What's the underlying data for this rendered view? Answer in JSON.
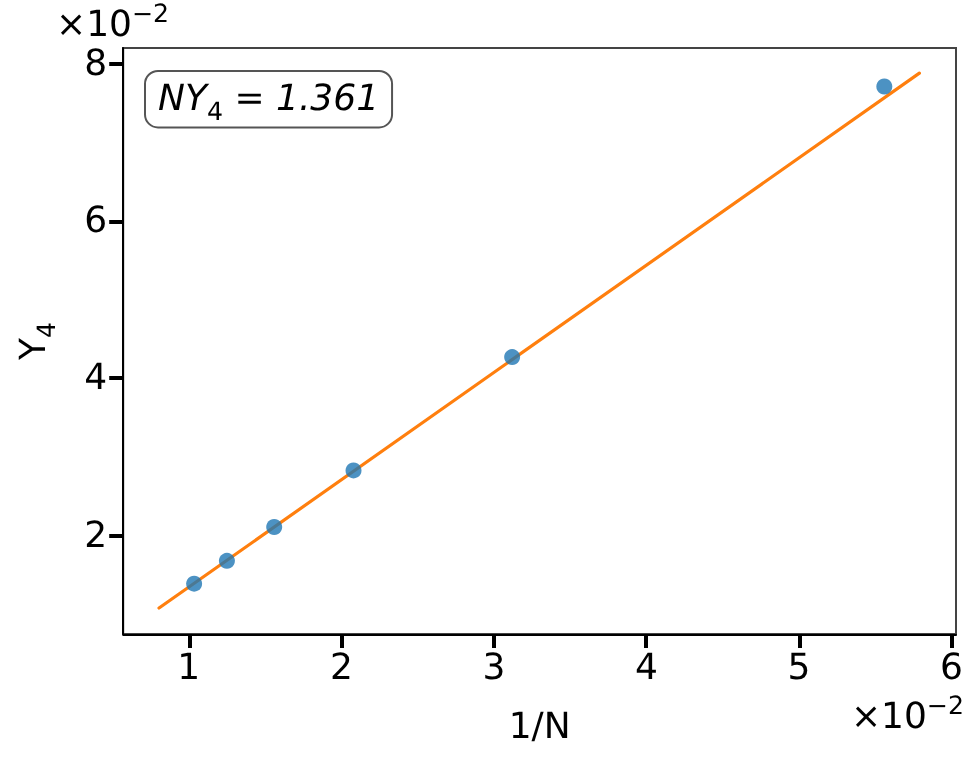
{
  "chart_data": {
    "type": "scatter",
    "xlabel": "1/N",
    "ylabel": "Y$_{4}$",
    "annotations": [
      "×10$^{−2}$",
      "×10$^{−2}$",
      "NY$_{4}$ = 1.361"
    ],
    "series": [
      {
        "color": "#1f77b4",
        "marker": "circle",
        "x": [
          1.035,
          1.25,
          1.56,
          2.08,
          3.12,
          5.56
        ],
        "values": [
          1.39,
          1.68,
          2.11,
          2.83,
          4.27,
          7.71
        ]
      },
      {
        "type": "line",
        "color": "#ff7f0e",
        "marker": "none",
        "x": [
          0.805,
          5.79
        ],
        "values": [
          1.08,
          7.88
        ]
      }
    ],
    "xlim": [
      0.57,
      6.03
    ],
    "ylim": [
      0.75,
      8.2
    ],
    "xticks": [
      1,
      2,
      3,
      4,
      5,
      6
    ],
    "yticks": [
      2,
      4,
      6,
      8
    ],
    "grid": false,
    "line_style": "solid"
  }
}
